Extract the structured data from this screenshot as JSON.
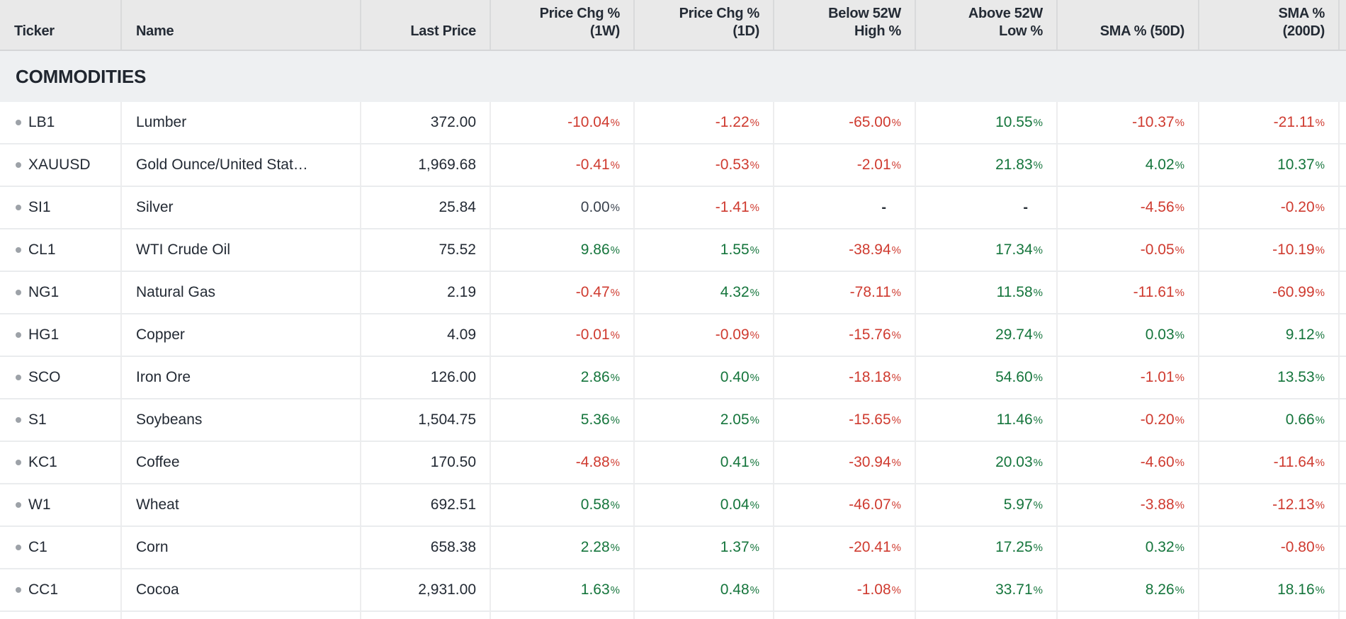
{
  "colors": {
    "positive": "#15753c",
    "negative": "#cf3b30",
    "neutral": "#3b434e",
    "text": "#232a34",
    "header_bg": "#e9e9e9",
    "section_bg": "#eef0f2"
  },
  "table": {
    "section_title": "COMMODITIES",
    "columns": [
      {
        "label": "Ticker",
        "align": "left"
      },
      {
        "label": "Name",
        "align": "left"
      },
      {
        "label": "Last Price",
        "align": "right"
      },
      {
        "label": "Price Chg %\n(1W)",
        "align": "right"
      },
      {
        "label": "Price Chg %\n(1D)",
        "align": "right"
      },
      {
        "label": "Below 52W\nHigh %",
        "align": "right"
      },
      {
        "label": "Above 52W\nLow %",
        "align": "right"
      },
      {
        "label": "SMA % (50D)",
        "align": "right"
      },
      {
        "label": "SMA %\n(200D)",
        "align": "right"
      }
    ],
    "pct_suffix": "%",
    "dash": "-",
    "rows": [
      {
        "ticker": "LB1",
        "name": "Lumber",
        "last_price": "372.00",
        "pct": [
          {
            "v": "-10.04",
            "s": "neg"
          },
          {
            "v": "-1.22",
            "s": "neg"
          },
          {
            "v": "-65.00",
            "s": "neg"
          },
          {
            "v": "10.55",
            "s": "pos"
          },
          {
            "v": "-10.37",
            "s": "neg"
          },
          {
            "v": "-21.11",
            "s": "neg"
          }
        ]
      },
      {
        "ticker": "XAUUSD",
        "name": "Gold Ounce/United Stat…",
        "last_price": "1,969.68",
        "pct": [
          {
            "v": "-0.41",
            "s": "neg"
          },
          {
            "v": "-0.53",
            "s": "neg"
          },
          {
            "v": "-2.01",
            "s": "neg"
          },
          {
            "v": "21.83",
            "s": "pos"
          },
          {
            "v": "4.02",
            "s": "pos"
          },
          {
            "v": "10.37",
            "s": "pos"
          }
        ]
      },
      {
        "ticker": "SI1",
        "name": "Silver",
        "last_price": "25.84",
        "pct": [
          {
            "v": "0.00",
            "s": "neu"
          },
          {
            "v": "-1.41",
            "s": "neg"
          },
          {
            "v": "-",
            "s": "dash"
          },
          {
            "v": "-",
            "s": "dash"
          },
          {
            "v": "-4.56",
            "s": "neg"
          },
          {
            "v": "-0.20",
            "s": "neg"
          }
        ]
      },
      {
        "ticker": "CL1",
        "name": "WTI Crude Oil",
        "last_price": "75.52",
        "pct": [
          {
            "v": "9.86",
            "s": "pos"
          },
          {
            "v": "1.55",
            "s": "pos"
          },
          {
            "v": "-38.94",
            "s": "neg"
          },
          {
            "v": "17.34",
            "s": "pos"
          },
          {
            "v": "-0.05",
            "s": "neg"
          },
          {
            "v": "-10.19",
            "s": "neg"
          }
        ]
      },
      {
        "ticker": "NG1",
        "name": "Natural Gas",
        "last_price": "2.19",
        "pct": [
          {
            "v": "-0.47",
            "s": "neg"
          },
          {
            "v": "4.32",
            "s": "pos"
          },
          {
            "v": "-78.11",
            "s": "neg"
          },
          {
            "v": "11.58",
            "s": "pos"
          },
          {
            "v": "-11.61",
            "s": "neg"
          },
          {
            "v": "-60.99",
            "s": "neg"
          }
        ]
      },
      {
        "ticker": "HG1",
        "name": "Copper",
        "last_price": "4.09",
        "pct": [
          {
            "v": "-0.01",
            "s": "neg"
          },
          {
            "v": "-0.09",
            "s": "neg"
          },
          {
            "v": "-15.76",
            "s": "neg"
          },
          {
            "v": "29.74",
            "s": "pos"
          },
          {
            "v": "0.03",
            "s": "pos"
          },
          {
            "v": "9.12",
            "s": "pos"
          }
        ]
      },
      {
        "ticker": "SCO",
        "name": "Iron Ore",
        "last_price": "126.00",
        "pct": [
          {
            "v": "2.86",
            "s": "pos"
          },
          {
            "v": "0.40",
            "s": "pos"
          },
          {
            "v": "-18.18",
            "s": "neg"
          },
          {
            "v": "54.60",
            "s": "pos"
          },
          {
            "v": "-1.01",
            "s": "neg"
          },
          {
            "v": "13.53",
            "s": "pos"
          }
        ]
      },
      {
        "ticker": "S1",
        "name": "Soybeans",
        "last_price": "1,504.75",
        "pct": [
          {
            "v": "5.36",
            "s": "pos"
          },
          {
            "v": "2.05",
            "s": "pos"
          },
          {
            "v": "-15.65",
            "s": "neg"
          },
          {
            "v": "11.46",
            "s": "pos"
          },
          {
            "v": "-0.20",
            "s": "neg"
          },
          {
            "v": "0.66",
            "s": "pos"
          }
        ]
      },
      {
        "ticker": "KC1",
        "name": "Coffee",
        "last_price": "170.50",
        "pct": [
          {
            "v": "-4.88",
            "s": "neg"
          },
          {
            "v": "0.41",
            "s": "pos"
          },
          {
            "v": "-30.94",
            "s": "neg"
          },
          {
            "v": "20.03",
            "s": "pos"
          },
          {
            "v": "-4.60",
            "s": "neg"
          },
          {
            "v": "-11.64",
            "s": "neg"
          }
        ]
      },
      {
        "ticker": "W1",
        "name": "Wheat",
        "last_price": "692.51",
        "pct": [
          {
            "v": "0.58",
            "s": "pos"
          },
          {
            "v": "0.04",
            "s": "pos"
          },
          {
            "v": "-46.07",
            "s": "neg"
          },
          {
            "v": "5.97",
            "s": "pos"
          },
          {
            "v": "-3.88",
            "s": "neg"
          },
          {
            "v": "-12.13",
            "s": "neg"
          }
        ]
      },
      {
        "ticker": "C1",
        "name": "Corn",
        "last_price": "658.38",
        "pct": [
          {
            "v": "2.28",
            "s": "pos"
          },
          {
            "v": "1.37",
            "s": "pos"
          },
          {
            "v": "-20.41",
            "s": "neg"
          },
          {
            "v": "17.25",
            "s": "pos"
          },
          {
            "v": "0.32",
            "s": "pos"
          },
          {
            "v": "-0.80",
            "s": "neg"
          }
        ]
      },
      {
        "ticker": "CC1",
        "name": "Cocoa",
        "last_price": "2,931.00",
        "pct": [
          {
            "v": "1.63",
            "s": "pos"
          },
          {
            "v": "0.48",
            "s": "pos"
          },
          {
            "v": "-1.08",
            "s": "neg"
          },
          {
            "v": "33.71",
            "s": "pos"
          },
          {
            "v": "8.26",
            "s": "pos"
          },
          {
            "v": "18.16",
            "s": "pos"
          }
        ]
      }
    ]
  }
}
